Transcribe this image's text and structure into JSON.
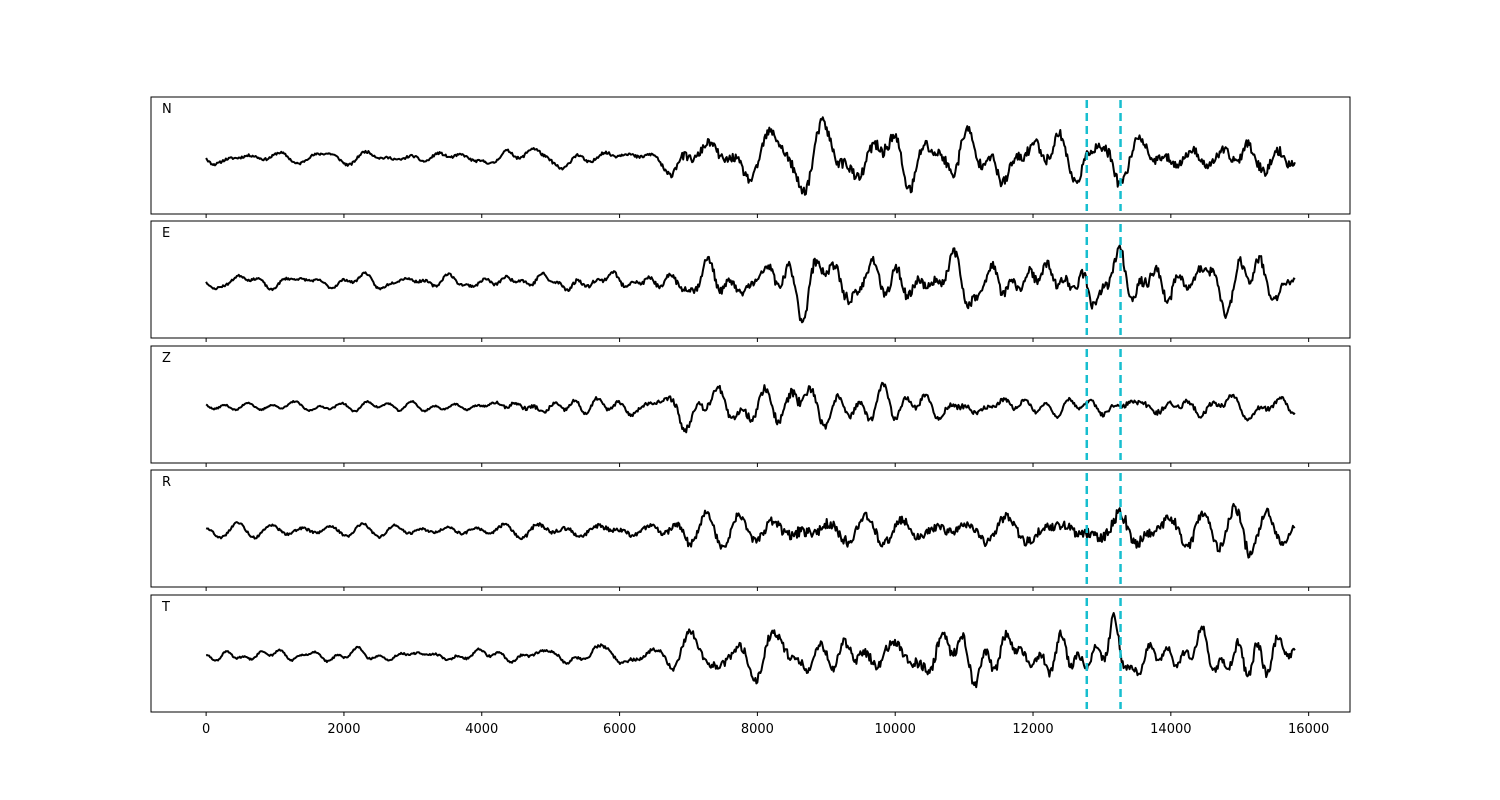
{
  "chart_data": {
    "type": "line",
    "x_range": [
      0,
      15800
    ],
    "xlim": [
      -800,
      16600
    ],
    "x_ticks": [
      "0",
      "2000",
      "4000",
      "6000",
      "8000",
      "10000",
      "12000",
      "14000",
      "16000"
    ],
    "x_tick_values": [
      0,
      2000,
      4000,
      6000,
      8000,
      10000,
      12000,
      14000,
      16000
    ],
    "grid": false,
    "trace_color": "#000000",
    "pick_color": "#17becf",
    "vertical_markers": [
      12780,
      13270
    ],
    "series": [
      {
        "name": "N",
        "envelope": [
          [
            0,
            0.16
          ],
          [
            4000,
            0.16
          ],
          [
            5000,
            0.22
          ],
          [
            6500,
            0.2
          ],
          [
            6800,
            0.55
          ],
          [
            7200,
            0.5
          ],
          [
            8000,
            0.6
          ],
          [
            9000,
            0.75
          ],
          [
            10000,
            0.8
          ],
          [
            11000,
            0.75
          ],
          [
            12000,
            0.7
          ],
          [
            12800,
            0.6
          ],
          [
            13100,
            0.85
          ],
          [
            13400,
            0.55
          ],
          [
            14600,
            0.5
          ],
          [
            15100,
            0.85
          ],
          [
            15800,
            0.55
          ]
        ],
        "seed": 11
      },
      {
        "name": "E",
        "envelope": [
          [
            0,
            0.15
          ],
          [
            4000,
            0.18
          ],
          [
            5000,
            0.25
          ],
          [
            6500,
            0.3
          ],
          [
            7000,
            0.5
          ],
          [
            8000,
            0.55
          ],
          [
            8900,
            0.85
          ],
          [
            9400,
            0.75
          ],
          [
            10500,
            0.6
          ],
          [
            12000,
            0.65
          ],
          [
            13000,
            0.7
          ],
          [
            13500,
            0.8
          ],
          [
            14500,
            0.6
          ],
          [
            15200,
            0.85
          ],
          [
            15800,
            0.45
          ]
        ],
        "seed": 23
      },
      {
        "name": "Z",
        "envelope": [
          [
            0,
            0.12
          ],
          [
            4000,
            0.12
          ],
          [
            4500,
            0.3
          ],
          [
            6500,
            0.25
          ],
          [
            6900,
            0.65
          ],
          [
            7500,
            0.45
          ],
          [
            8400,
            0.7
          ],
          [
            8550,
            0.95
          ],
          [
            9000,
            0.45
          ],
          [
            11000,
            0.4
          ],
          [
            12800,
            0.2
          ],
          [
            13300,
            0.45
          ],
          [
            15800,
            0.35
          ]
        ],
        "seed": 37
      },
      {
        "name": "R",
        "envelope": [
          [
            0,
            0.15
          ],
          [
            4000,
            0.17
          ],
          [
            5000,
            0.25
          ],
          [
            6500,
            0.28
          ],
          [
            7000,
            0.5
          ],
          [
            8000,
            0.55
          ],
          [
            8900,
            0.8
          ],
          [
            9500,
            0.6
          ],
          [
            11000,
            0.55
          ],
          [
            12800,
            0.6
          ],
          [
            13400,
            0.8
          ],
          [
            14500,
            0.5
          ],
          [
            15050,
            0.75
          ],
          [
            15800,
            0.3
          ]
        ],
        "seed": 49
      },
      {
        "name": "T",
        "envelope": [
          [
            0,
            0.14
          ],
          [
            4000,
            0.17
          ],
          [
            5000,
            0.2
          ],
          [
            6500,
            0.3
          ],
          [
            7000,
            0.6
          ],
          [
            8000,
            0.65
          ],
          [
            9000,
            0.75
          ],
          [
            10000,
            0.8
          ],
          [
            10600,
            0.85
          ],
          [
            12000,
            0.65
          ],
          [
            12800,
            0.7
          ],
          [
            13100,
            0.9
          ],
          [
            13500,
            0.45
          ],
          [
            14600,
            0.55
          ],
          [
            15100,
            0.85
          ],
          [
            15800,
            0.5
          ]
        ],
        "seed": 61
      }
    ]
  }
}
